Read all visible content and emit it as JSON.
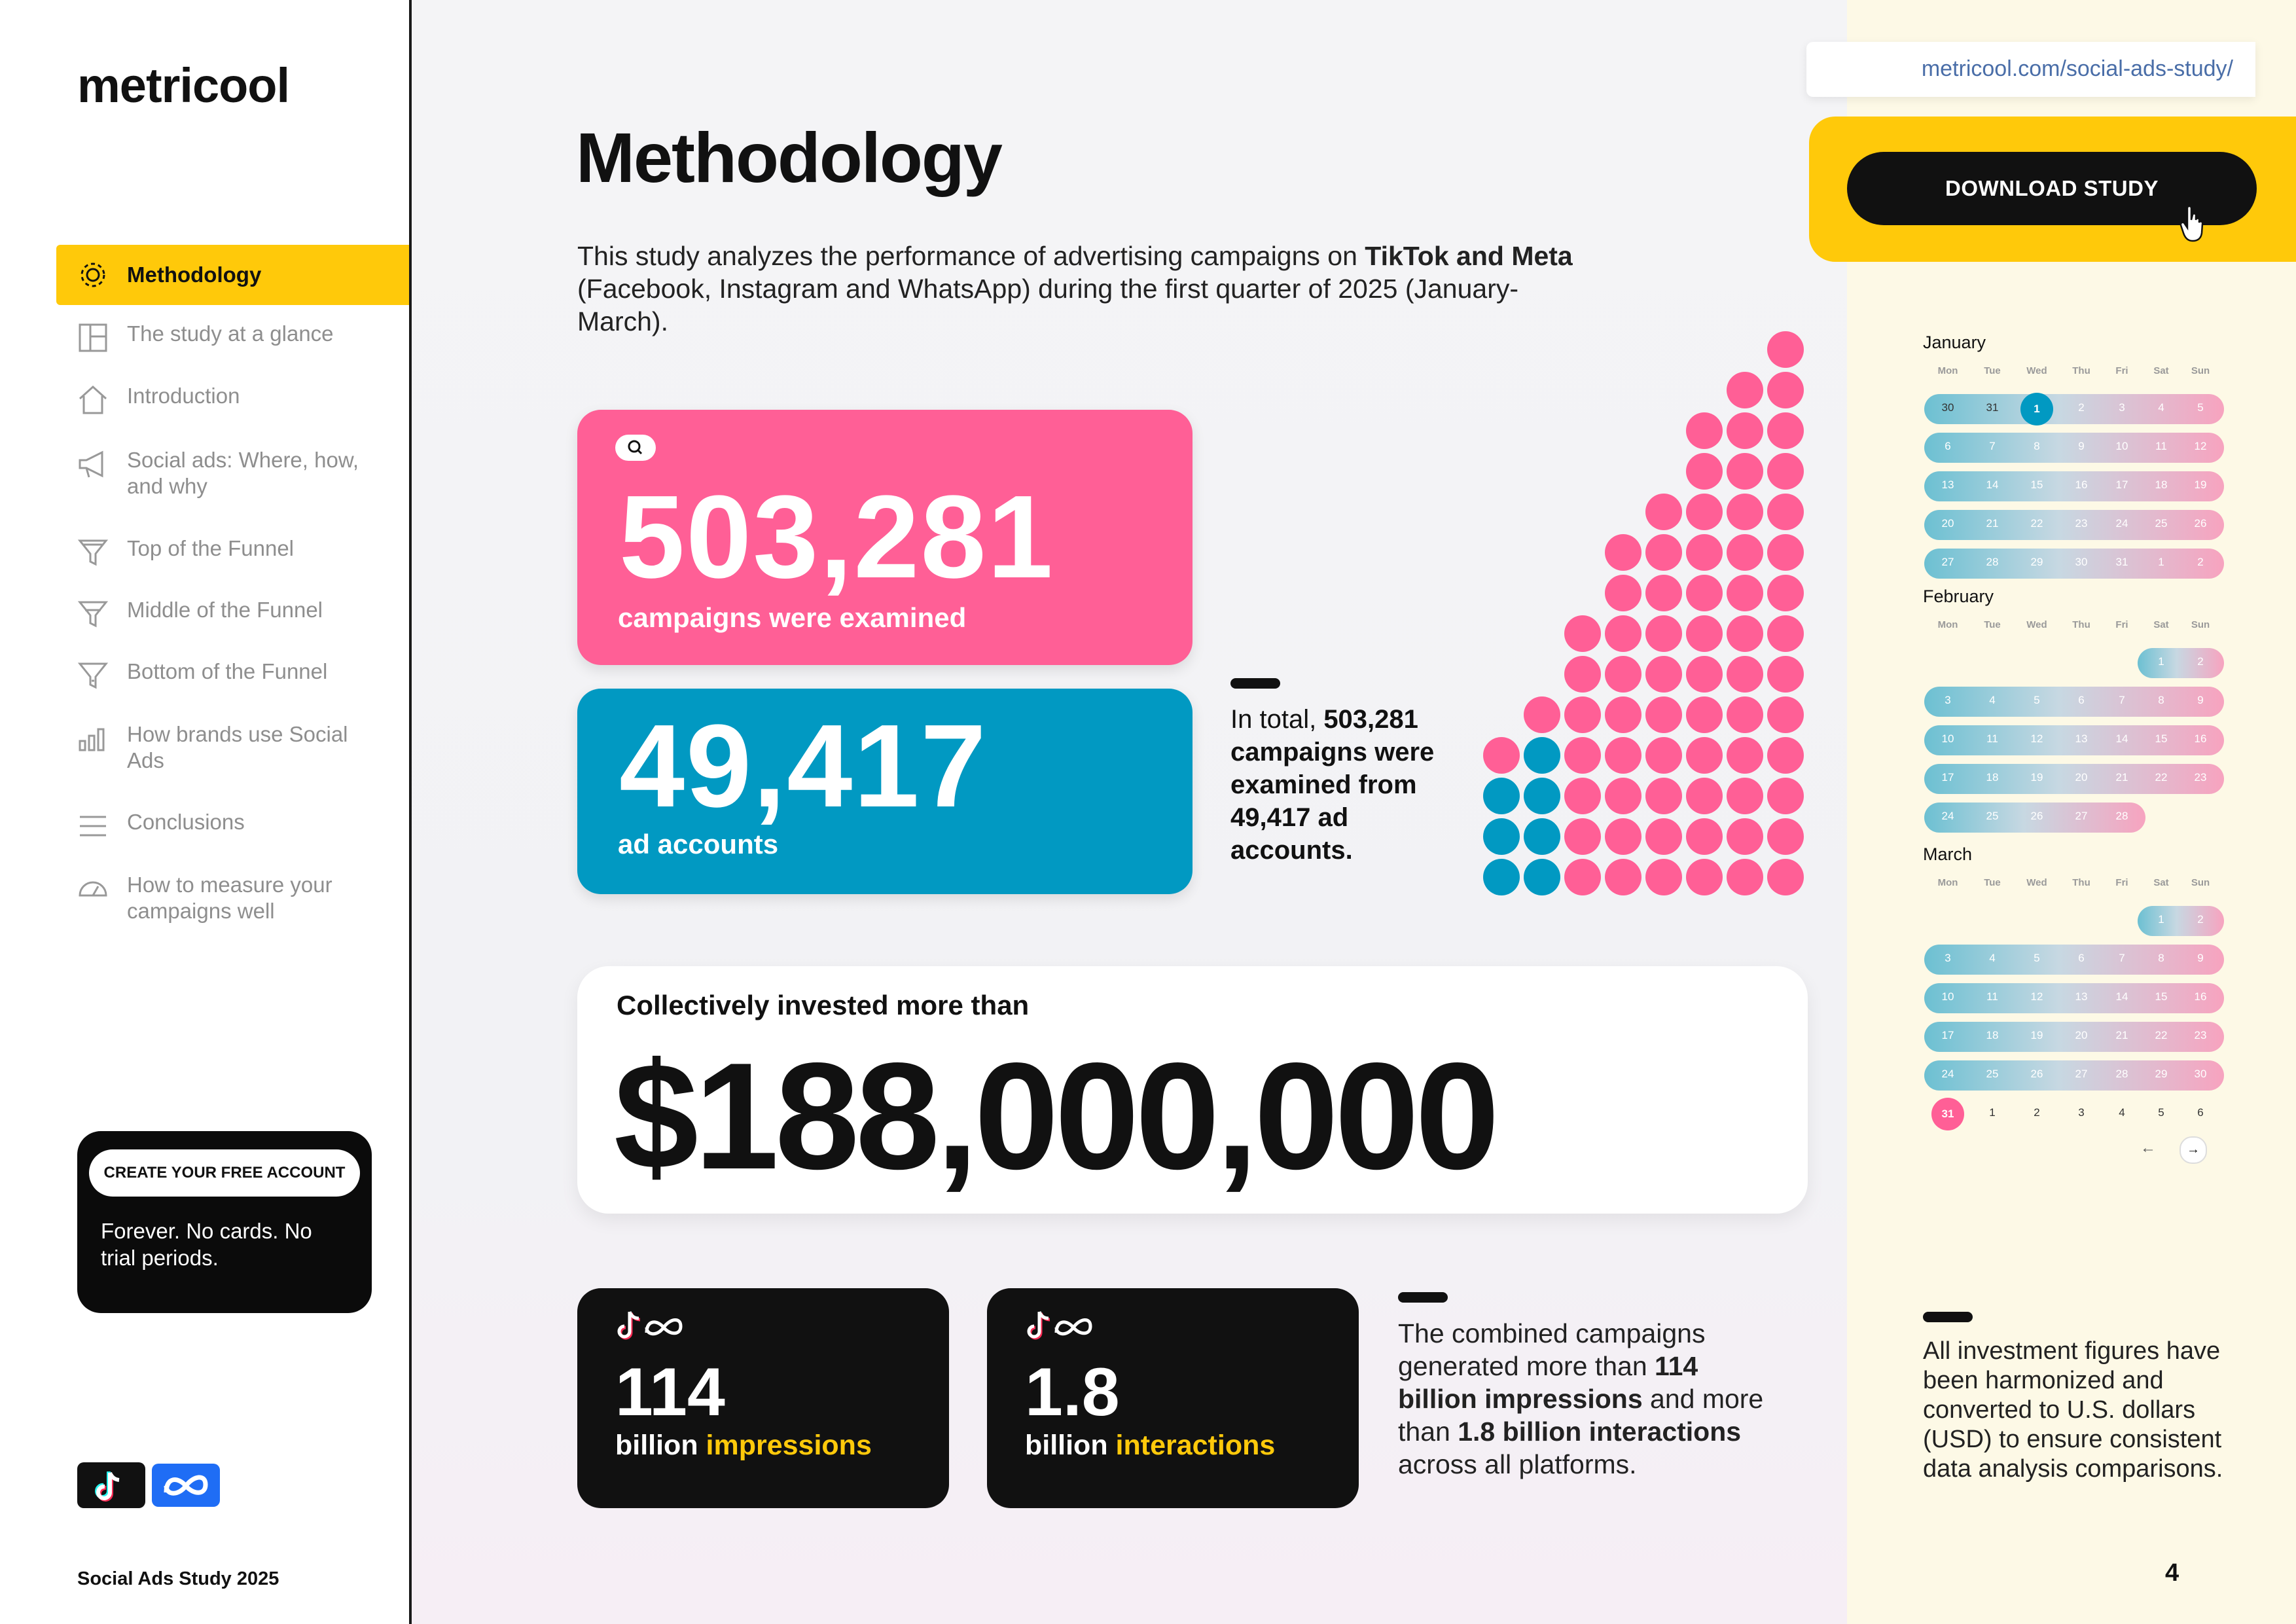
{
  "sidebar": {
    "logo": "metricool",
    "items": [
      {
        "label": "Methodology",
        "icon": "gear-icon",
        "active": true
      },
      {
        "label": "The study at a glance",
        "icon": "layout-icon"
      },
      {
        "label": "Introduction",
        "icon": "home-icon"
      },
      {
        "label": "Social ads: Where, how, and why",
        "icon": "megaphone-icon"
      },
      {
        "label": "Top of the Funnel",
        "icon": "funnel-icon"
      },
      {
        "label": "Middle of the Funnel",
        "icon": "funnel-icon"
      },
      {
        "label": "Bottom of the Funnel",
        "icon": "funnel-icon"
      },
      {
        "label": "How brands use Social Ads",
        "icon": "bar-chart-icon"
      },
      {
        "label": "Conclusions",
        "icon": "list-icon"
      },
      {
        "label": "How to measure your campaigns well",
        "icon": "gauge-icon"
      }
    ],
    "cta": {
      "button": "CREATE YOUR FREE ACCOUNT",
      "text": "Forever. No cards. No trial periods."
    },
    "footer": "Social Ads Study 2025"
  },
  "main": {
    "title": "Methodology",
    "intro": {
      "part1": "This study analyzes the performance of advertising campaigns on ",
      "bold": "TikTok and Meta",
      "part2": " (Facebook, Instagram and WhatsApp) during the first quarter of 2025 (January-March)."
    },
    "campaigns": {
      "value": "503,281",
      "label": "campaigns were examined"
    },
    "accounts": {
      "value": "49,417",
      "label": "ad accounts"
    },
    "total": {
      "lead": "In total, ",
      "bold": "503,281 campaigns were examined from 49,417 ad accounts."
    },
    "dots": {
      "accounts_color": "#0199c2",
      "campaigns_color": "#ff5f96"
    },
    "investment": {
      "label": "Collectively invested more than",
      "value": "$188,000,000"
    },
    "impressions": {
      "value": "114",
      "label_plain": "billion ",
      "label_highlight": "impressions"
    },
    "interactions": {
      "value": "1.8",
      "label_plain": "billion ",
      "label_highlight": "interactions"
    },
    "combined": {
      "t1": "The combined campaigns generated more than ",
      "b1": "114 billion impressions",
      "t2": " and more than ",
      "b2": "1.8 billion interactions",
      "t3": " across all platforms."
    }
  },
  "right": {
    "url": "metricool.com/social-ads-study/",
    "download": "DOWNLOAD STUDY",
    "weekdays": [
      "Mon",
      "Tue",
      "Wed",
      "Thu",
      "Fri",
      "Sat",
      "Sun"
    ],
    "months": [
      {
        "name": "January",
        "rows": [
          [
            "30",
            "31",
            "1",
            "2",
            "3",
            "4",
            "5"
          ],
          [
            "6",
            "7",
            "8",
            "9",
            "10",
            "11",
            "12"
          ],
          [
            "13",
            "14",
            "15",
            "16",
            "17",
            "18",
            "19"
          ],
          [
            "20",
            "21",
            "22",
            "23",
            "24",
            "25",
            "26"
          ],
          [
            "27",
            "28",
            "29",
            "30",
            "31",
            "1",
            "2"
          ]
        ]
      },
      {
        "name": "February",
        "rows": [
          [
            "",
            "",
            "",
            "",
            "",
            "1",
            "2"
          ],
          [
            "3",
            "4",
            "5",
            "6",
            "7",
            "8",
            "9"
          ],
          [
            "10",
            "11",
            "12",
            "13",
            "14",
            "15",
            "16"
          ],
          [
            "17",
            "18",
            "19",
            "20",
            "21",
            "22",
            "23"
          ],
          [
            "24",
            "25",
            "26",
            "27",
            "28",
            "",
            ""
          ]
        ]
      },
      {
        "name": "March",
        "rows": [
          [
            "",
            "",
            "",
            "",
            "",
            "1",
            "2"
          ],
          [
            "3",
            "4",
            "5",
            "6",
            "7",
            "8",
            "9"
          ],
          [
            "10",
            "11",
            "12",
            "13",
            "14",
            "15",
            "16"
          ],
          [
            "17",
            "18",
            "19",
            "20",
            "21",
            "22",
            "23"
          ],
          [
            "24",
            "25",
            "26",
            "27",
            "28",
            "29",
            "30"
          ],
          [
            "31",
            "1",
            "2",
            "3",
            "4",
            "5",
            "6"
          ]
        ]
      }
    ],
    "nav_prev": "←",
    "nav_next": "→",
    "note": "All investment figures have been harmonized and converted to U.S. dollars (USD) to ensure consistent data analysis comparisons.",
    "page_number": "4"
  }
}
